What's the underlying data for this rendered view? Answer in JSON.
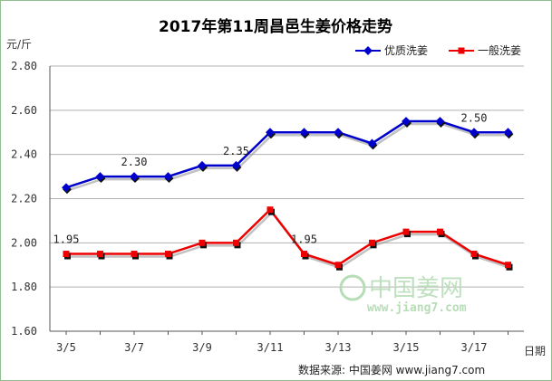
{
  "chart_data": {
    "type": "line",
    "title": "2017年第11周昌邑生姜价格走势",
    "ylabel": "元/斤",
    "xlabel": "日期",
    "ylim": [
      1.6,
      2.8
    ],
    "yticks": [
      "1.60",
      "1.80",
      "2.00",
      "2.20",
      "2.40",
      "2.60",
      "2.80"
    ],
    "x": [
      "3/5",
      "3/6",
      "3/7",
      "3/8",
      "3/9",
      "3/10",
      "3/11",
      "3/12",
      "3/13",
      "3/14",
      "3/15",
      "3/16",
      "3/17",
      "3/18"
    ],
    "xtick_labels": [
      "3/5",
      "3/7",
      "3/9",
      "3/11",
      "3/13",
      "3/15",
      "3/17"
    ],
    "legend_position": "top-right",
    "grid": "horizontal",
    "series": [
      {
        "name": "优质洗姜",
        "color": "#0000cc",
        "values": [
          2.25,
          2.3,
          2.3,
          2.3,
          2.35,
          2.35,
          2.5,
          2.5,
          2.5,
          2.45,
          2.55,
          2.55,
          2.5,
          2.5
        ]
      },
      {
        "name": "一般洗姜",
        "color": "#ee0000",
        "values": [
          1.95,
          1.95,
          1.95,
          1.95,
          2.0,
          2.0,
          2.15,
          1.95,
          1.9,
          2.0,
          2.05,
          2.05,
          1.95,
          1.9
        ]
      }
    ],
    "annotations": [
      {
        "text": "1.95",
        "series": 1,
        "index": 0
      },
      {
        "text": "2.30",
        "series": 0,
        "index": 2
      },
      {
        "text": "2.35",
        "series": 0,
        "index": 5
      },
      {
        "text": "1.95",
        "series": 1,
        "index": 7
      },
      {
        "text": "2.50",
        "series": 0,
        "index": 12
      }
    ]
  },
  "watermark": {
    "text": "中国姜网",
    "sub": "www.jiang7.com"
  },
  "source": "数据来源: 中国姜网 www.jiang7.com"
}
